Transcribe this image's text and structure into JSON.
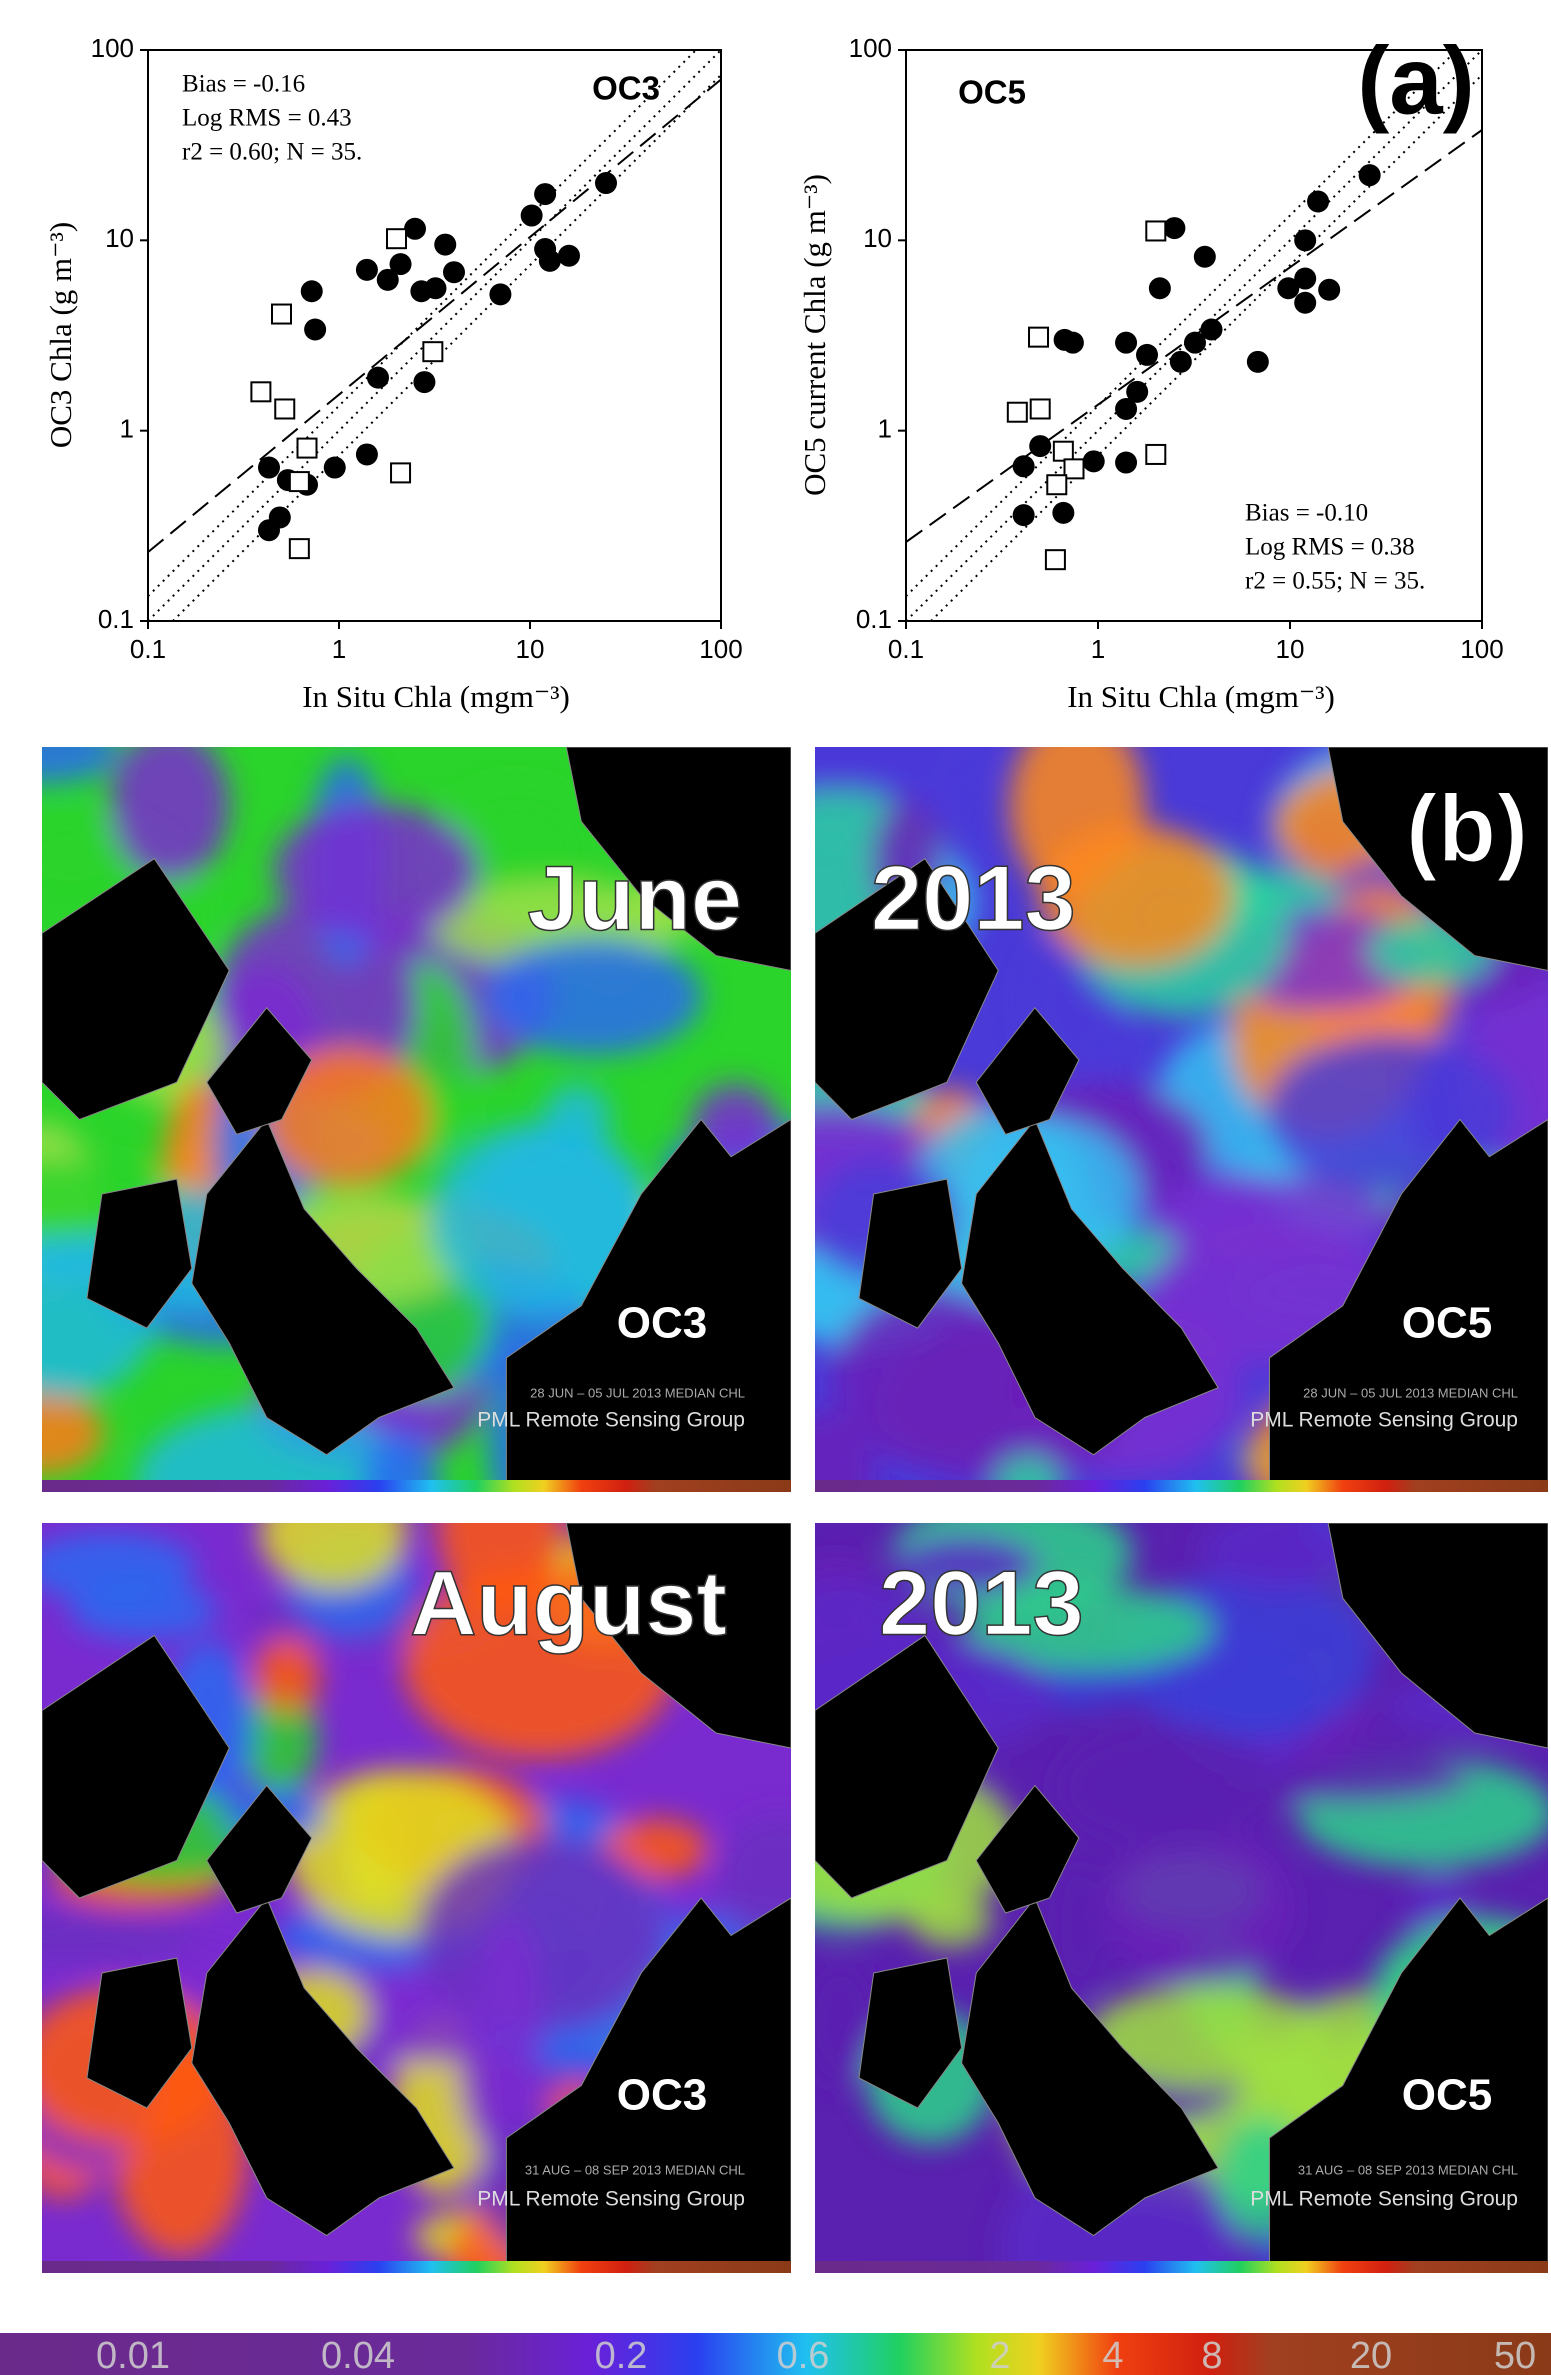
{
  "panel_labels": {
    "a": "(a)",
    "b": "(b)"
  },
  "chart_data": [
    {
      "type": "scatter",
      "log_x": true,
      "log_y": true,
      "model_label": "OC3",
      "y_label": "OC3 Chla (g m⁻³)",
      "x_label": "In Situ Chla (mgm⁻³)",
      "annotations": [
        "Bias = -0.16",
        "Log RMS = 0.43",
        "r2 = 0.60; N = 35."
      ],
      "xlim": [
        0.1,
        100
      ],
      "ylim": [
        0.1,
        100
      ],
      "xticks": [
        0.1,
        1,
        10,
        100
      ],
      "yticks": [
        0.1,
        1,
        10,
        100
      ],
      "series": [
        {
          "color": "#000000",
          "marker": "circle",
          "x": [
            0.72,
            0.75,
            1.4,
            1.8,
            2.1,
            2.5,
            2.7,
            3.2,
            3.6,
            4.0,
            7.0,
            10.2,
            12,
            12,
            12.7,
            16,
            25,
            1.6,
            2.8,
            1.4,
            0.95,
            0.43,
            0.54,
            0.68,
            0.43,
            0.49
          ],
          "values": [
            5.4,
            3.4,
            7.0,
            6.2,
            7.5,
            11.5,
            5.4,
            5.6,
            9.5,
            6.8,
            5.2,
            13.5,
            17.5,
            9,
            7.8,
            8.3,
            20,
            1.9,
            1.8,
            0.75,
            0.64,
            0.64,
            0.55,
            0.52,
            0.3,
            0.35
          ]
        },
        {
          "color": "#000000",
          "marker": "square-open",
          "x": [
            2.0,
            0.5,
            0.39,
            0.52,
            0.68,
            0.62,
            2.1,
            3.1,
            0.62
          ],
          "values": [
            10.2,
            4.1,
            1.6,
            1.3,
            0.81,
            0.54,
            0.6,
            2.6,
            0.24
          ]
        }
      ],
      "fit_line": {
        "x": [
          0.1,
          100
        ],
        "values": [
          0.23,
          70
        ]
      },
      "reference_lines": [
        {
          "x": [
            0.1,
            100
          ],
          "values": [
            0.1,
            100
          ]
        },
        {
          "x": [
            0.1,
            74
          ],
          "values": [
            0.135,
            100
          ]
        },
        {
          "x": [
            0.135,
            100
          ],
          "values": [
            0.1,
            74
          ]
        }
      ]
    },
    {
      "type": "scatter",
      "log_x": true,
      "log_y": true,
      "model_label": "OC5",
      "y_label": "OC5 current Chla (g m⁻³)",
      "x_label": "In Situ Chla (mgm⁻³)",
      "annotations": [
        "Bias = -0.10",
        "Log RMS = 0.38",
        "r2 = 0.55; N = 35."
      ],
      "xlim": [
        0.1,
        100
      ],
      "ylim": [
        0.1,
        100
      ],
      "xticks": [
        0.1,
        1,
        10,
        100
      ],
      "yticks": [
        0.1,
        1,
        10,
        100
      ],
      "series": [
        {
          "color": "#000000",
          "marker": "circle",
          "x": [
            2.5,
            2.1,
            3.6,
            1.4,
            1.8,
            2.7,
            3.2,
            3.9,
            1.6,
            1.4,
            1.4,
            0.95,
            0.74,
            0.67,
            0.66,
            0.5,
            0.41,
            0.41,
            6.8,
            9.8,
            12,
            12,
            16,
            12,
            14,
            26
          ],
          "values": [
            11.6,
            5.6,
            8.2,
            2.9,
            2.5,
            2.3,
            2.9,
            3.4,
            1.6,
            1.3,
            0.68,
            0.69,
            2.9,
            3.0,
            0.37,
            0.83,
            0.65,
            0.36,
            2.3,
            5.6,
            6.3,
            4.7,
            5.5,
            10,
            16,
            22
          ]
        },
        {
          "color": "#000000",
          "marker": "square-open",
          "x": [
            2.0,
            0.49,
            0.38,
            0.5,
            0.66,
            0.75,
            0.61,
            2.0,
            0.6
          ],
          "values": [
            11.2,
            3.1,
            1.25,
            1.3,
            0.78,
            0.63,
            0.52,
            0.75,
            0.21
          ]
        }
      ],
      "fit_line": {
        "x": [
          0.1,
          100
        ],
        "values": [
          0.26,
          38
        ]
      },
      "reference_lines": [
        {
          "x": [
            0.1,
            100
          ],
          "values": [
            0.1,
            100
          ]
        },
        {
          "x": [
            0.1,
            74
          ],
          "values": [
            0.135,
            100
          ]
        },
        {
          "x": [
            0.135,
            100
          ],
          "values": [
            0.1,
            74
          ]
        }
      ]
    }
  ],
  "maps": [
    {
      "title": "June",
      "model": "OC3",
      "date": "28 JUN – 05 JUL 2013 MEDIAN CHL",
      "credit": "PML Remote Sensing Group"
    },
    {
      "title": "2013",
      "model": "OC5",
      "date": "28 JUN – 05 JUL 2013 MEDIAN CHL",
      "credit": "PML Remote Sensing Group"
    },
    {
      "title": "August",
      "model": "OC3",
      "date": "31 AUG – 08 SEP 2013 MEDIAN CHL",
      "credit": "PML Remote Sensing Group"
    },
    {
      "title": "2013",
      "model": "OC5",
      "date": "31 AUG – 08 SEP 2013 MEDIAN CHL",
      "credit": "PML Remote Sensing Group"
    }
  ],
  "colorbar": {
    "ticks": [
      0.01,
      0.04,
      0.2,
      0.6,
      2,
      4,
      8,
      20,
      50
    ]
  }
}
